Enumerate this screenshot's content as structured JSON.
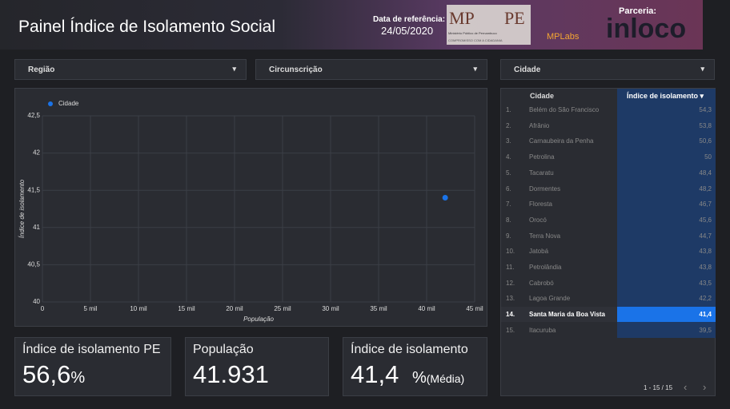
{
  "header": {
    "title": "Painel Índice de Isolamento Social",
    "ref_label": "Data de referência:",
    "ref_date": "24/05/2020",
    "logo_mp": "MP",
    "logo_pe": "PE",
    "logo_mp_sub": "Ministério Público de Pernambuco",
    "logo_mp_motto": "COMPROMISSO COM A CIDADANIA",
    "mplabs": "MPLabs",
    "partner_label": "Parceria:",
    "partner": "inloco"
  },
  "filters": [
    "Região",
    "Circunscrição",
    "Cidade"
  ],
  "chart_data": {
    "type": "scatter",
    "x_label": "População",
    "y_label": "Índice de isolamento",
    "series": [
      {
        "name": "Cidade",
        "color": "#1a73e8",
        "x": [
          41931
        ],
        "values": [
          41.4
        ]
      }
    ],
    "xlim": [
      0,
      45000
    ],
    "ylim": [
      40,
      42.5
    ],
    "xticks": [
      0,
      {
        "value": 5000,
        "label": "5 mil"
      },
      {
        "value": 10000,
        "label": "10 mil"
      },
      {
        "value": 15000,
        "label": "15 mil"
      },
      {
        "value": 20000,
        "label": "20 mil"
      },
      {
        "value": 25000,
        "label": "25 mil"
      },
      {
        "value": 30000,
        "label": "30 mil"
      },
      {
        "value": 35000,
        "label": "35 mil"
      },
      {
        "value": 40000,
        "label": "40 mil"
      },
      {
        "value": 45000,
        "label": "45 mil"
      }
    ],
    "yticks": [
      40,
      {
        "value": 40.5,
        "label": "40,5"
      },
      41,
      {
        "value": 41.5,
        "label": "41,5"
      },
      42,
      {
        "value": 42.5,
        "label": "42,5"
      }
    ],
    "grid": true,
    "legend": "top-left"
  },
  "table": {
    "columns": [
      "Cidade",
      "Índice de isolamento"
    ],
    "selected_row": 13,
    "rows": [
      [
        "1.",
        "Belém do São Francisco",
        "54,3"
      ],
      [
        "2.",
        "Afrânio",
        "53,8"
      ],
      [
        "3.",
        "Carnaubeira da Penha",
        "50,6"
      ],
      [
        "4.",
        "Petrolina",
        "50"
      ],
      [
        "5.",
        "Tacaratu",
        "48,4"
      ],
      [
        "6.",
        "Dormentes",
        "48,2"
      ],
      [
        "7.",
        "Floresta",
        "46,7"
      ],
      [
        "8.",
        "Orocó",
        "45,6"
      ],
      [
        "9.",
        "Terra Nova",
        "44,7"
      ],
      [
        "10.",
        "Jatobá",
        "43,8"
      ],
      [
        "11.",
        "Petrolândia",
        "43,8"
      ],
      [
        "12.",
        "Cabrobó",
        "43,5"
      ],
      [
        "13.",
        "Lagoa Grande",
        "42,2"
      ],
      [
        "14.",
        "Santa Maria da Boa Vista",
        "41,4"
      ],
      [
        "15.",
        "Itacuruba",
        "39,5"
      ]
    ],
    "pagination": "1 - 15 / 15"
  },
  "scorecards": [
    {
      "label": "Índice de isolamento PE",
      "value": "56,6",
      "unit": "%"
    },
    {
      "label": "População",
      "value": "41.931"
    },
    {
      "label": "Índice de isolamento",
      "value": "41,4",
      "unit": "%",
      "suffix": "(Média)"
    }
  ]
}
